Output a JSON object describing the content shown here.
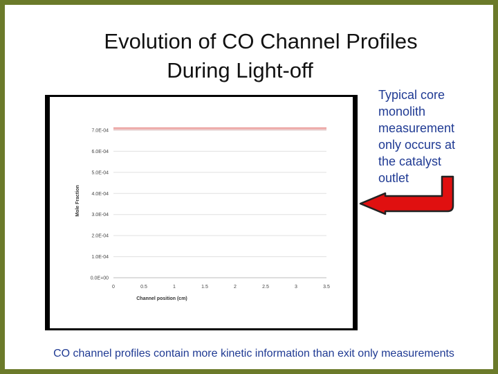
{
  "slide": {
    "title_line1": "Evolution of CO Channel Profiles",
    "title_line2": "During Light-off",
    "note_lines": [
      "Typical core",
      "monolith",
      "measurement",
      "only occurs at",
      "the catalyst",
      "outlet"
    ],
    "footer": "CO channel profiles contain more kinetic information than exit only measurements"
  },
  "colors": {
    "border": "#6b7a2a",
    "text_blue": "#1f3a93",
    "arrow_red": "#e01010",
    "series_red": "#d9534f",
    "series_pink": "#e8a0a0"
  },
  "chart_data": {
    "type": "line",
    "xlabel": "Channel position (cm)",
    "ylabel": "Mole Fraction",
    "xlim": [
      0,
      3.5
    ],
    "ylim": [
      0,
      0.0007
    ],
    "xticks": [
      "0",
      "0.5",
      "1",
      "1.5",
      "2",
      "2.5",
      "3",
      "3.5"
    ],
    "yticks": [
      "0.0E+00",
      "1.0E-04",
      "2.0E-04",
      "3.0E-04",
      "4.0E-04",
      "5.0E-04",
      "6.0E-04",
      "7.0E-04"
    ],
    "grid": true,
    "series": [
      {
        "x": [
          0,
          3.5
        ],
        "values": [
          0.00071,
          0.00071
        ],
        "color": "#d9534f"
      },
      {
        "x": [
          0,
          3.5
        ],
        "values": [
          0.000703,
          0.000703
        ],
        "color": "#e8a0a0"
      }
    ]
  }
}
